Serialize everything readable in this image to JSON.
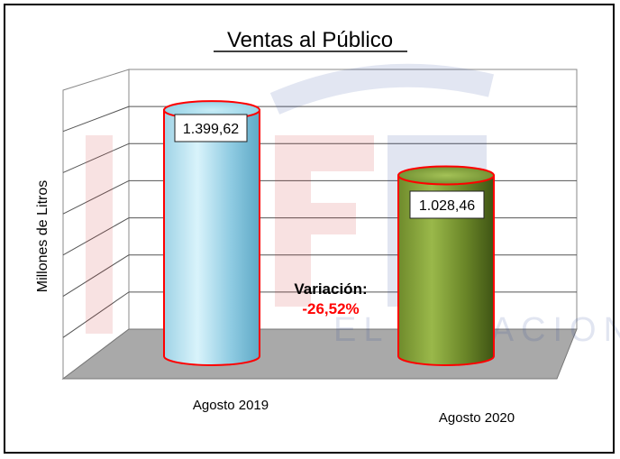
{
  "chart_data": {
    "type": "bar",
    "title": "Ventas al Público",
    "ylabel": "Millones de Litros",
    "xlabel": "",
    "categories": [
      "Agosto 2019",
      "Agosto 2020"
    ],
    "series": [
      {
        "values": [
          1399.62,
          1028.46
        ]
      }
    ],
    "data_labels": [
      "1.399,62",
      "1.028,46"
    ],
    "ylim": [
      0,
      1600
    ],
    "grid": true,
    "legend": "none",
    "annotation": {
      "label": "Variación:",
      "value": "-26,52%",
      "label_color": "#000000",
      "value_color": "#ff0000"
    },
    "colors": {
      "bar_2019": "#8ecfe6",
      "bar_2020": "#6b8a2e",
      "bar_outline": "#ff0000",
      "floor": "#a9a9a9",
      "walls": "#ffffff"
    }
  }
}
